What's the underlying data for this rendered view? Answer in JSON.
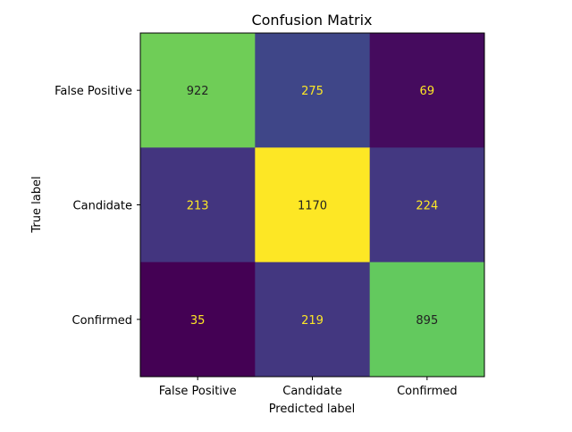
{
  "chart_data": {
    "type": "heatmap",
    "title": "Confusion Matrix",
    "xlabel": "Predicted label",
    "ylabel": "True label",
    "x_categories": [
      "False Positive",
      "Candidate",
      "Confirmed"
    ],
    "y_categories": [
      "False Positive",
      "Candidate",
      "Confirmed"
    ],
    "values": [
      [
        922,
        275,
        69
      ],
      [
        213,
        1170,
        224
      ],
      [
        35,
        219,
        895
      ]
    ],
    "colormap": "viridis",
    "text_colors": {
      "dark_bg": "#fde725",
      "light_bg": "#222222"
    },
    "grid": false,
    "colorbar": false
  }
}
